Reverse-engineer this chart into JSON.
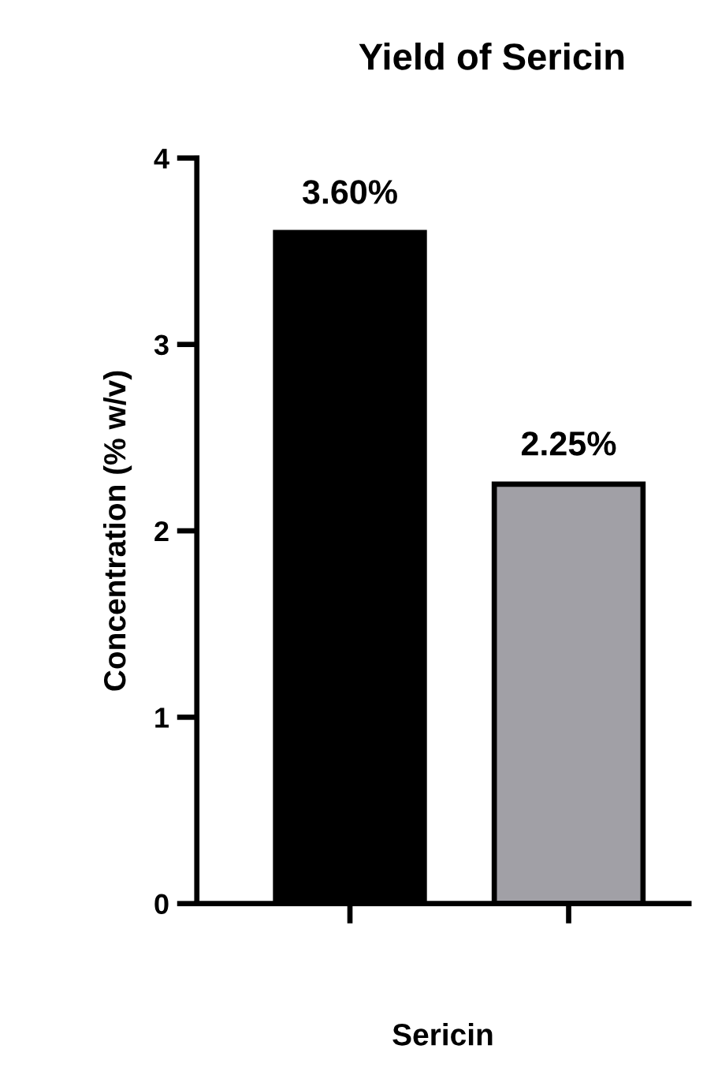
{
  "chart_data": {
    "type": "bar",
    "title": "Yield of Sericin",
    "xlabel": "Sericin",
    "ylabel": "Concentration (% w/v)",
    "categories": [
      null,
      null
    ],
    "values": [
      3.6,
      2.25
    ],
    "colors": [
      "#000000",
      "#a1a0a6"
    ],
    "value_labels": [
      "3.60%",
      "2.25%"
    ],
    "ylim": [
      0,
      4
    ],
    "yticks": [
      0,
      1,
      2,
      3,
      4
    ],
    "grid": false,
    "legend": false
  }
}
